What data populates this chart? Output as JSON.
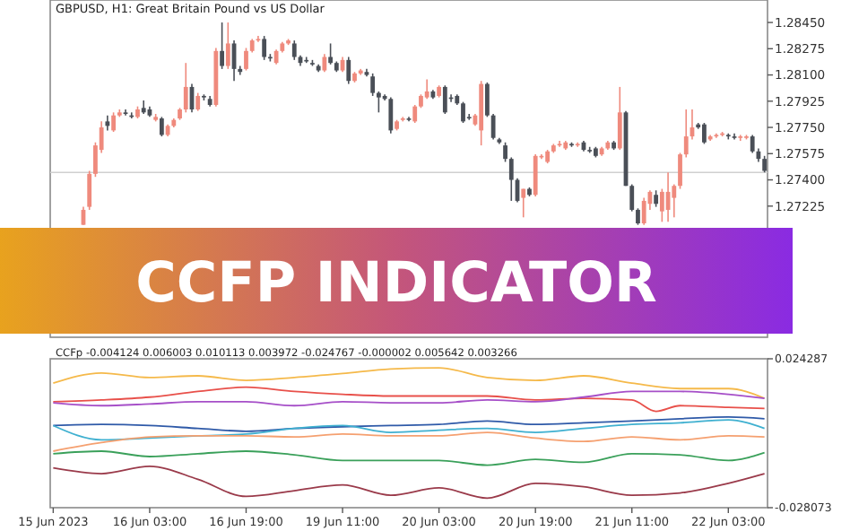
{
  "chart_data": [
    {
      "type": "candlestick",
      "title": "GBPUSD, H1:  Great Britain Pound vs US Dollar",
      "annotations": [
        "CCFP INDICATOR"
      ],
      "categories": [
        null,
        null,
        null,
        null,
        null,
        null,
        null,
        null,
        null,
        null,
        null,
        null,
        null,
        null,
        null,
        null,
        null,
        null,
        null,
        null,
        null,
        null,
        null,
        null,
        null,
        null,
        null,
        null,
        null,
        null,
        null,
        null,
        null,
        null,
        null,
        null,
        null,
        null,
        null,
        null,
        null,
        null,
        null,
        null,
        null,
        null,
        null,
        null,
        null,
        null,
        null,
        null,
        null,
        null,
        null,
        null,
        null,
        null,
        null,
        null,
        null,
        null,
        null,
        null,
        null,
        null,
        null,
        null,
        null,
        null,
        null,
        null,
        null,
        null,
        null,
        null,
        null,
        null,
        null,
        null,
        null,
        null,
        null,
        null,
        null,
        null,
        null,
        null,
        null,
        null,
        null,
        null,
        null,
        null,
        null,
        null,
        null,
        null,
        null,
        null,
        null,
        null,
        null,
        null,
        null,
        null,
        null,
        null,
        null,
        null,
        null,
        null,
        null,
        null,
        null,
        null,
        null,
        null,
        null
      ],
      "colors": [
        null,
        null,
        null,
        null,
        null,
        "#ef8a7d",
        "#ef8a7d",
        "#ef8a7d",
        "#ef8a7d",
        "#4a4f57",
        "#ef8a7d",
        "#ef8a7d",
        "#4a4f57",
        "#4a4f57",
        "#ef8a7d",
        "#4a4f57",
        "#4a4f57",
        "#ef8a7d",
        "#4a4f57",
        "#ef8a7d",
        "#ef8a7d",
        "#ef8a7d",
        "#ef8a7d",
        "#4a4f57",
        "#ef8a7d",
        "#4a4f57",
        "#4a4f57",
        "#ef8a7d",
        "#4a4f57",
        "#ef8a7d",
        "#4a4f57",
        "#4a4f57",
        "#ef8a7d",
        "#ef8a7d",
        "#ef8a7d",
        "#4a4f57",
        "#4a4f57",
        "#ef8a7d",
        "#ef8a7d",
        "#ef8a7d",
        "#4a4f57",
        "#4a4f57",
        "#4a4f57",
        "#4a4f57",
        "#4a4f57",
        "#ef8a7d",
        "#4a4f57",
        "#4a4f57",
        "#ef8a7d",
        "#4a4f57",
        "#ef8a7d",
        "#ef8a7d",
        "#4a4f57",
        "#4a4f57",
        "#4a4f57",
        "#4a4f57",
        "#4a4f57",
        "#ef8a7d",
        "#ef8a7d",
        "#4a4f57",
        "#ef8a7d",
        "#ef8a7d",
        "#ef8a7d",
        "#4a4f57",
        "#ef8a7d",
        "#4a4f57",
        "#4a4f57",
        "#4a4f57",
        "#4a4f57",
        "#4a4f57",
        "#ef8a7d",
        "#ef8a7d",
        "#4a4f57",
        "#4a4f57",
        "#4a4f57",
        "#4a4f57",
        "#4a4f57",
        "#4a4f57",
        "#ef8a7d",
        "#4a4f57",
        "#ef8a7d",
        "#ef8a7d",
        "#ef8a7d",
        "#ef8a7d",
        "#ef8a7d",
        "#ef8a7d",
        "#4a4f57",
        "#ef8a7d",
        "#4a4f57",
        "#4a4f57",
        "#4a4f57",
        "#ef8a7d",
        "#ef8a7d",
        "#4a4f57",
        "#ef8a7d",
        "#4a4f57",
        "#4a4f57",
        "#4a4f57",
        "#ef8a7d",
        "#ef8a7d",
        "#4a4f57",
        "#ef8a7d",
        "#ef8a7d",
        "#ef8a7d",
        "#ef8a7d",
        "#ef8a7d",
        "#ef8a7d",
        "#4a4f57",
        "#4a4f57",
        "#ef8a7d",
        "#ef8a7d",
        "#ef8a7d",
        "#4a4f57",
        "#4a4f57",
        "#ef8a7d",
        "#ef8a7d",
        "#4a4f57",
        "#4a4f57",
        "#4a4f57"
      ],
      "tick_labels": "y",
      "ylim": [
        1.2635,
        1.286
      ],
      "yticks": [
        {
          "value": 1.2845,
          "label": "1.28450"
        },
        1.28275,
        {
          "value": 1.281,
          "label": "1.28100"
        },
        1.27925,
        {
          "value": 1.2775,
          "label": "1.27750"
        },
        1.27575,
        {
          "value": 1.274,
          "label": "1.27400"
        },
        1.27225
      ],
      "ref_lines": [
        {
          "axis": "y",
          "value": 1.2745,
          "color": "#d0d0d0"
        }
      ],
      "ohlc": [
        null,
        null,
        null,
        null,
        null,
        [
          1.271,
          1.2722,
          1.271,
          1.272
        ],
        [
          1.2722,
          1.2746,
          1.272,
          1.2744
        ],
        [
          1.2744,
          1.2765,
          1.2742,
          1.2763
        ],
        [
          1.276,
          1.2779,
          1.2758,
          1.2775
        ],
        [
          1.2779,
          1.2783,
          1.2773,
          1.2776
        ],
        [
          1.2773,
          1.2785,
          1.2772,
          1.2783
        ],
        [
          1.2783,
          1.2787,
          1.2782,
          1.2785
        ],
        [
          1.2785,
          1.2787,
          1.2783,
          1.2784
        ],
        [
          1.2783,
          1.2785,
          1.2781,
          1.2782
        ],
        [
          1.2782,
          1.2789,
          1.2781,
          1.2787
        ],
        [
          1.2788,
          1.2793,
          1.2784,
          1.2785
        ],
        [
          1.2787,
          1.2789,
          1.2782,
          1.2783
        ],
        [
          1.278,
          1.2784,
          1.2779,
          1.2782
        ],
        [
          1.2781,
          1.2782,
          1.2769,
          1.277
        ],
        [
          1.277,
          1.2777,
          1.2769,
          1.2776
        ],
        [
          1.2776,
          1.2781,
          1.2775,
          1.278
        ],
        [
          1.2781,
          1.2788,
          1.278,
          1.2787
        ],
        [
          1.2787,
          1.2818,
          1.2785,
          1.2802
        ],
        [
          1.2802,
          1.2804,
          1.2785,
          1.2787
        ],
        [
          1.2787,
          1.2798,
          1.2786,
          1.2796
        ],
        [
          1.2796,
          1.2797,
          1.2793,
          1.2795
        ],
        [
          1.2794,
          1.2796,
          1.2789,
          1.279
        ],
        [
          1.279,
          1.2828,
          1.2789,
          1.2826
        ],
        [
          1.2826,
          1.2845,
          1.2814,
          1.2816
        ],
        [
          1.2816,
          1.2845,
          1.2814,
          1.2831
        ],
        [
          1.2831,
          1.2833,
          1.2806,
          1.2814
        ],
        [
          1.2814,
          1.2816,
          1.281,
          1.2812
        ],
        [
          1.2814,
          1.2828,
          1.2813,
          1.2826
        ],
        [
          1.2826,
          1.2834,
          1.2825,
          1.2833
        ],
        [
          1.2833,
          1.2836,
          1.2832,
          1.2834
        ],
        [
          1.2834,
          1.2836,
          1.282,
          1.2822
        ],
        [
          1.2822,
          1.2824,
          1.2819,
          1.2821
        ],
        [
          1.2818,
          1.2827,
          1.2817,
          1.2826
        ],
        [
          1.2826,
          1.2832,
          1.2825,
          1.2831
        ],
        [
          1.2831,
          1.2834,
          1.283,
          1.2833
        ],
        [
          1.2831,
          1.2833,
          1.282,
          1.2822
        ],
        [
          1.2822,
          1.2823,
          1.2816,
          1.2818
        ],
        [
          1.282,
          1.2822,
          1.2818,
          1.2819
        ],
        [
          1.2818,
          1.282,
          1.2816,
          1.2817
        ],
        [
          1.2816,
          1.2817,
          1.2812,
          1.2813
        ],
        [
          1.2813,
          1.2824,
          1.2812,
          1.2822
        ],
        [
          1.2822,
          1.2831,
          1.2817,
          1.2818
        ],
        [
          1.2818,
          1.2819,
          1.2812,
          1.2813
        ],
        [
          1.2813,
          1.2822,
          1.2812,
          1.282
        ],
        [
          1.282,
          1.2822,
          1.2804,
          1.2806
        ],
        [
          1.2806,
          1.2812,
          1.2805,
          1.2811
        ],
        [
          1.2811,
          1.2814,
          1.281,
          1.2813
        ],
        [
          1.2812,
          1.2814,
          1.2809,
          1.281
        ],
        [
          1.2809,
          1.2811,
          1.2796,
          1.2798
        ],
        [
          1.2798,
          1.2799,
          1.2785,
          1.2795
        ],
        [
          1.2796,
          1.2797,
          1.2793,
          1.2794
        ],
        [
          1.2794,
          1.2795,
          1.2771,
          1.2773
        ],
        [
          1.2774,
          1.278,
          1.2773,
          1.2779
        ],
        [
          1.278,
          1.2782,
          1.2779,
          1.2781
        ],
        [
          1.2781,
          1.2782,
          1.2779,
          1.278
        ],
        [
          1.2779,
          1.279,
          1.2778,
          1.2789
        ],
        [
          1.2789,
          1.2797,
          1.2788,
          1.2796
        ],
        [
          1.2795,
          1.2807,
          1.2794,
          1.2799
        ],
        [
          1.2799,
          1.28,
          1.2794,
          1.2795
        ],
        [
          1.2796,
          1.2803,
          1.2795,
          1.2802
        ],
        [
          1.2802,
          1.2803,
          1.2784,
          1.2785
        ],
        [
          1.2795,
          1.2797,
          1.2792,
          1.2794
        ],
        [
          1.2796,
          1.2797,
          1.279,
          1.2791
        ],
        [
          1.2791,
          1.2792,
          1.2778,
          1.2779
        ],
        [
          1.2782,
          1.2784,
          1.278,
          1.2781
        ],
        [
          1.2777,
          1.2784,
          1.2776,
          1.2783
        ],
        [
          1.2773,
          1.2806,
          1.2763,
          1.2804
        ],
        [
          1.2804,
          1.2805,
          1.2782,
          1.2783
        ],
        [
          1.2783,
          1.2784,
          1.2767,
          1.2768
        ],
        [
          1.2767,
          1.2768,
          1.2764,
          1.2765
        ],
        [
          1.2763,
          1.2765,
          1.2752,
          1.2754
        ],
        [
          1.2754,
          1.2755,
          1.2726,
          1.274
        ],
        [
          1.274,
          1.2741,
          1.2725,
          1.2726
        ],
        [
          1.2728,
          1.2734,
          1.2715,
          1.2734
        ],
        [
          1.2734,
          1.2735,
          1.2729,
          1.273
        ],
        [
          1.273,
          1.2757,
          1.2729,
          1.2756
        ],
        [
          1.2755,
          1.2757,
          1.2754,
          1.2756
        ],
        [
          1.2752,
          1.276,
          1.2751,
          1.2759
        ],
        [
          1.2759,
          1.2764,
          1.2758,
          1.2763
        ],
        [
          1.2763,
          1.2766,
          1.2762,
          1.2764
        ],
        [
          1.2761,
          1.2766,
          1.276,
          1.2765
        ],
        [
          1.2764,
          1.2765,
          1.2762,
          1.2763
        ],
        [
          1.2763,
          1.2765,
          1.2762,
          1.2764
        ],
        [
          1.2765,
          1.2766,
          1.2759,
          1.276
        ],
        [
          1.276,
          1.2762,
          1.2758,
          1.2759
        ],
        [
          1.2761,
          1.2762,
          1.2755,
          1.2756
        ],
        [
          1.2757,
          1.2762,
          1.2756,
          1.2761
        ],
        [
          1.2761,
          1.2766,
          1.276,
          1.2765
        ],
        [
          1.2765,
          1.2766,
          1.276,
          1.2761
        ],
        [
          1.2761,
          1.2802,
          1.276,
          1.2785
        ],
        [
          1.2785,
          1.2786,
          1.2736,
          1.2736
        ],
        [
          1.2736,
          1.2737,
          1.2719,
          1.272
        ],
        [
          1.272,
          1.2721,
          1.271,
          1.2711
        ],
        [
          1.2711,
          1.2728,
          1.271,
          1.2726
        ],
        [
          1.2724,
          1.2733,
          1.272,
          1.2732
        ],
        [
          1.273,
          1.2733,
          1.2722,
          1.2724
        ],
        [
          1.2719,
          1.2734,
          1.2712,
          1.2732
        ],
        [
          1.272,
          1.2745,
          1.2712,
          1.2732
        ],
        [
          1.2728,
          1.2737,
          1.2715,
          1.2736
        ],
        [
          1.2736,
          1.2758,
          1.2734,
          1.2757
        ],
        [
          1.2757,
          1.2787,
          1.2755,
          1.2769
        ],
        [
          1.2769,
          1.2787,
          1.2767,
          1.2775
        ],
        [
          1.2777,
          1.2778,
          1.2774,
          1.2775
        ],
        [
          1.2777,
          1.2778,
          1.2764,
          1.2765
        ],
        [
          1.2767,
          1.277,
          1.2766,
          1.2769
        ],
        [
          1.2769,
          1.2771,
          1.2768,
          1.277
        ],
        [
          1.277,
          1.2772,
          1.2769,
          1.2771
        ],
        [
          1.277,
          1.2771,
          1.2767,
          1.2769
        ],
        [
          1.2769,
          1.2771,
          1.2767,
          1.2768
        ],
        [
          1.2768,
          1.277,
          1.2766,
          1.2769
        ],
        [
          1.2768,
          1.277,
          1.2767,
          1.2769
        ],
        [
          1.2769,
          1.277,
          1.2758,
          1.2759
        ],
        [
          1.2759,
          1.2761,
          1.2752,
          1.2754
        ],
        [
          1.2754,
          1.2756,
          1.2745,
          1.2746
        ]
      ]
    },
    {
      "type": "line",
      "title": "CCFp -0.004124 0.006003 0.010113 0.003972 -0.024767 -0.000002 0.005642 0.003266",
      "ylim": [
        -0.028073,
        0.024287
      ],
      "yticks": [
        0.024287,
        -0.028073
      ],
      "categories": [
        "15 Jun 2023",
        null,
        null,
        null,
        null,
        null,
        null,
        null,
        null,
        null,
        null,
        null,
        null,
        null,
        null,
        null,
        "16 Jun 03:00",
        null,
        null,
        null,
        null,
        null,
        null,
        null,
        null,
        null,
        null,
        null,
        null,
        null,
        null,
        null,
        "16 Jun 19:00",
        null,
        null,
        null,
        null,
        null,
        null,
        null,
        null,
        null,
        null,
        null,
        null,
        null,
        null,
        null,
        "19 Jun 11:00",
        null,
        null,
        null,
        null,
        null,
        null,
        null,
        null,
        null,
        null,
        null,
        null,
        null,
        null,
        null,
        "20 Jun 03:00",
        null,
        null,
        null,
        null,
        null,
        null,
        null,
        null,
        null,
        null,
        null,
        null,
        null,
        null,
        null,
        "20 Jun 19:00",
        null,
        null,
        null,
        null,
        null,
        null,
        null,
        null,
        null,
        null,
        null,
        null,
        null,
        null,
        null,
        "21 Jun 11:00",
        null,
        null,
        null,
        null,
        null,
        null,
        null,
        null,
        null,
        null,
        null,
        null,
        null,
        null,
        null,
        "22 Jun 03:00",
        null,
        null,
        null,
        null,
        null,
        null
      ],
      "series": [
        {
          "color": "#f5b94a",
          "values": [
            0.0157,
            null,
            null,
            null,
            null,
            null,
            null,
            null,
            0.0193,
            null,
            null,
            null,
            null,
            null,
            null,
            null,
            0.0177,
            null,
            null,
            null,
            null,
            null,
            null,
            null,
            0.0183,
            null,
            null,
            null,
            null,
            null,
            null,
            null,
            0.0167,
            null,
            null,
            null,
            null,
            null,
            null,
            null,
            0.0177,
            null,
            null,
            null,
            null,
            null,
            null,
            null,
            0.0191,
            null,
            null,
            null,
            null,
            null,
            null,
            null,
            0.0207,
            null,
            null,
            null,
            null,
            null,
            null,
            null,
            0.0211,
            null,
            null,
            null,
            null,
            null,
            null,
            null,
            0.0177,
            null,
            null,
            null,
            null,
            null,
            null,
            null,
            0.0167,
            null,
            null,
            null,
            null,
            null,
            null,
            null,
            0.0183,
            null,
            null,
            null,
            null,
            null,
            null,
            null,
            0.0157,
            null,
            null,
            null,
            null,
            null,
            null,
            null,
            0.0138,
            null,
            null,
            null,
            null,
            null,
            null,
            null,
            0.0138,
            null,
            null,
            null,
            null,
            null,
            0.0104
          ]
        },
        {
          "color": "#e8504a",
          "values": [
            0.0092,
            null,
            null,
            null,
            null,
            null,
            null,
            null,
            0.0098,
            null,
            null,
            null,
            null,
            null,
            null,
            null,
            0.0108,
            null,
            null,
            null,
            null,
            null,
            null,
            null,
            0.0128,
            null,
            null,
            null,
            null,
            null,
            null,
            null,
            0.0143,
            null,
            null,
            null,
            null,
            null,
            null,
            null,
            0.0128,
            null,
            null,
            null,
            null,
            null,
            null,
            null,
            0.0118,
            null,
            null,
            null,
            null,
            null,
            null,
            null,
            0.0112,
            null,
            null,
            null,
            null,
            null,
            null,
            null,
            0.0112,
            null,
            null,
            null,
            null,
            null,
            null,
            null,
            0.0112,
            null,
            null,
            null,
            null,
            null,
            null,
            null,
            0.0098,
            null,
            null,
            null,
            null,
            null,
            null,
            null,
            0.0104,
            null,
            null,
            null,
            null,
            null,
            null,
            null,
            0.0098,
            null,
            null,
            null,
            0.0058,
            null,
            null,
            null,
            0.0078,
            null,
            null,
            null,
            null,
            null,
            null,
            null,
            0.0072,
            null,
            null,
            null,
            null,
            null,
            0.0068
          ]
        },
        {
          "color": "#a64fc8",
          "values": [
            0.0088,
            null,
            null,
            null,
            null,
            null,
            null,
            null,
            0.0078,
            null,
            null,
            null,
            null,
            null,
            null,
            null,
            0.0084,
            null,
            null,
            null,
            null,
            null,
            null,
            null,
            0.0092,
            null,
            null,
            null,
            null,
            null,
            null,
            null,
            0.0092,
            null,
            null,
            null,
            null,
            null,
            null,
            null,
            0.0078,
            null,
            null,
            null,
            null,
            null,
            null,
            null,
            0.0092,
            null,
            null,
            null,
            null,
            null,
            null,
            null,
            0.0088,
            null,
            null,
            null,
            null,
            null,
            null,
            null,
            0.0088,
            null,
            null,
            null,
            null,
            null,
            null,
            null,
            0.0098,
            null,
            null,
            null,
            null,
            null,
            null,
            null,
            0.0092,
            null,
            null,
            null,
            null,
            null,
            null,
            null,
            0.0108,
            null,
            null,
            null,
            null,
            null,
            null,
            null,
            0.0128,
            null,
            null,
            null,
            null,
            null,
            null,
            null,
            0.0128,
            null,
            null,
            null,
            null,
            null,
            null,
            null,
            0.0118,
            null,
            null,
            null,
            null,
            null,
            0.0104
          ]
        },
        {
          "color": "#2f5aa8",
          "values": [
            0.0008,
            null,
            null,
            null,
            null,
            null,
            null,
            null,
            0.0012,
            null,
            null,
            null,
            null,
            null,
            null,
            null,
            0.0008,
            null,
            null,
            null,
            null,
            null,
            null,
            null,
            -0.0002,
            null,
            null,
            null,
            null,
            null,
            null,
            null,
            -0.0012,
            null,
            null,
            null,
            null,
            null,
            null,
            null,
            -0.0002,
            null,
            null,
            null,
            null,
            null,
            null,
            null,
            0.0004,
            null,
            null,
            null,
            null,
            null,
            null,
            null,
            0.0008,
            null,
            null,
            null,
            null,
            null,
            null,
            null,
            0.0012,
            null,
            null,
            null,
            null,
            null,
            null,
            null,
            0.0024,
            null,
            null,
            null,
            null,
            null,
            null,
            null,
            0.0012,
            null,
            null,
            null,
            null,
            null,
            null,
            null,
            0.0018,
            null,
            null,
            null,
            null,
            null,
            null,
            null,
            0.0024,
            null,
            null,
            null,
            null,
            null,
            null,
            null,
            0.0032,
            null,
            null,
            null,
            null,
            null,
            null,
            null,
            0.0038,
            null,
            null,
            null,
            null,
            null,
            0.0032
          ]
        },
        {
          "color": "#3fb0d0",
          "values": [
            0.0008,
            null,
            null,
            null,
            null,
            null,
            null,
            null,
            -0.0042,
            null,
            null,
            null,
            null,
            null,
            null,
            null,
            -0.0036,
            null,
            null,
            null,
            null,
            null,
            null,
            null,
            -0.0028,
            null,
            null,
            null,
            null,
            null,
            null,
            null,
            -0.0022,
            null,
            null,
            null,
            null,
            null,
            null,
            null,
            -0.0002,
            null,
            null,
            null,
            null,
            null,
            null,
            null,
            0.0008,
            null,
            null,
            null,
            null,
            null,
            null,
            null,
            -0.0016,
            null,
            null,
            null,
            null,
            null,
            null,
            null,
            -0.0008,
            null,
            null,
            null,
            null,
            null,
            null,
            null,
            -0.0002,
            null,
            null,
            null,
            null,
            null,
            null,
            null,
            -0.0016,
            null,
            null,
            null,
            null,
            null,
            null,
            null,
            -0.0002,
            null,
            null,
            null,
            null,
            null,
            null,
            null,
            0.0012,
            null,
            null,
            null,
            null,
            null,
            null,
            null,
            0.0018,
            null,
            null,
            null,
            null,
            null,
            null,
            null,
            0.0028,
            null,
            null,
            null,
            null,
            null,
            -0.0002
          ]
        },
        {
          "color": "#f5a070",
          "values": [
            -0.0082,
            null,
            null,
            null,
            null,
            null,
            null,
            null,
            -0.0052,
            null,
            null,
            null,
            null,
            null,
            null,
            null,
            -0.0032,
            null,
            null,
            null,
            null,
            null,
            null,
            null,
            -0.0028,
            null,
            null,
            null,
            null,
            null,
            null,
            null,
            -0.0028,
            null,
            null,
            null,
            null,
            null,
            null,
            null,
            -0.0032,
            null,
            null,
            null,
            null,
            null,
            null,
            null,
            -0.0022,
            null,
            null,
            null,
            null,
            null,
            null,
            null,
            -0.0028,
            null,
            null,
            null,
            null,
            null,
            null,
            null,
            -0.0028,
            null,
            null,
            null,
            null,
            null,
            null,
            null,
            -0.0016,
            null,
            null,
            null,
            null,
            null,
            null,
            null,
            -0.0036,
            null,
            null,
            null,
            null,
            null,
            null,
            null,
            -0.0048,
            null,
            null,
            null,
            null,
            null,
            null,
            null,
            -0.0032,
            null,
            null,
            null,
            null,
            null,
            null,
            null,
            -0.0042,
            null,
            null,
            null,
            null,
            null,
            null,
            null,
            -0.0028,
            null,
            null,
            null,
            null,
            null,
            -0.0032
          ]
        },
        {
          "color": "#3aa05a",
          "values": [
            -0.0091,
            null,
            null,
            null,
            null,
            null,
            null,
            null,
            -0.0082,
            null,
            null,
            null,
            null,
            null,
            null,
            null,
            -0.0101,
            null,
            null,
            null,
            null,
            null,
            null,
            null,
            -0.0091,
            null,
            null,
            null,
            null,
            null,
            null,
            null,
            -0.0082,
            null,
            null,
            null,
            null,
            null,
            null,
            null,
            -0.0095,
            null,
            null,
            null,
            null,
            null,
            null,
            null,
            -0.0115,
            null,
            null,
            null,
            null,
            null,
            null,
            null,
            -0.0115,
            null,
            null,
            null,
            null,
            null,
            null,
            null,
            -0.0115,
            null,
            null,
            null,
            null,
            null,
            null,
            null,
            -0.0131,
            null,
            null,
            null,
            null,
            null,
            null,
            null,
            -0.0111,
            null,
            null,
            null,
            null,
            null,
            null,
            null,
            -0.0121,
            null,
            null,
            null,
            null,
            null,
            null,
            null,
            -0.0091,
            null,
            null,
            null,
            null,
            null,
            null,
            null,
            -0.0095,
            null,
            null,
            null,
            null,
            null,
            null,
            null,
            -0.0115,
            null,
            null,
            null,
            null,
            null,
            -0.0087
          ]
        },
        {
          "color": "#9a3a4a",
          "values": [
            -0.0141,
            null,
            null,
            null,
            null,
            null,
            null,
            null,
            -0.0161,
            null,
            null,
            null,
            null,
            null,
            null,
            null,
            -0.0135,
            null,
            null,
            null,
            null,
            null,
            null,
            null,
            -0.0181,
            null,
            null,
            null,
            null,
            null,
            null,
            null,
            -0.0241,
            null,
            null,
            null,
            null,
            null,
            null,
            null,
            -0.0221,
            null,
            null,
            null,
            null,
            null,
            null,
            null,
            -0.0201,
            null,
            null,
            null,
            null,
            null,
            null,
            null,
            -0.0237,
            null,
            null,
            null,
            null,
            null,
            null,
            null,
            -0.0211,
            null,
            null,
            null,
            null,
            null,
            null,
            null,
            -0.0247,
            null,
            null,
            null,
            null,
            null,
            null,
            null,
            -0.0195,
            null,
            null,
            null,
            null,
            null,
            null,
            null,
            -0.0207,
            null,
            null,
            null,
            null,
            null,
            null,
            null,
            -0.0237,
            null,
            null,
            null,
            null,
            null,
            null,
            null,
            -0.0229,
            null,
            null,
            null,
            null,
            null,
            null,
            null,
            -0.0195,
            null,
            null,
            null,
            null,
            null,
            -0.0161
          ]
        }
      ]
    }
  ]
}
